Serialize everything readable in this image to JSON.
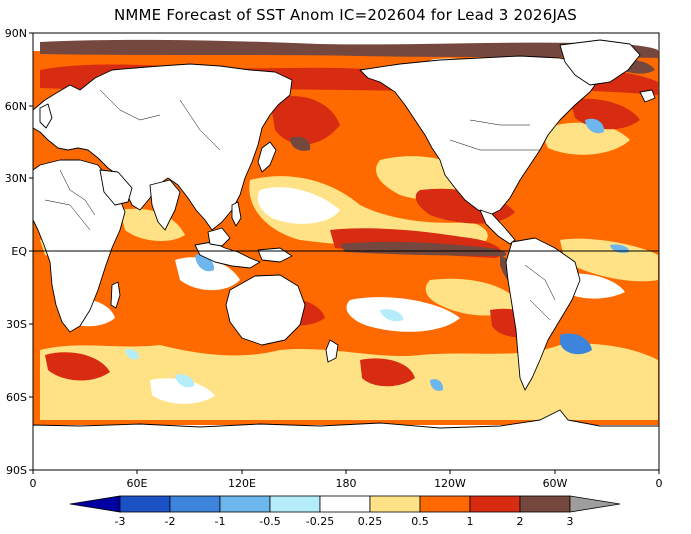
{
  "title": "NMME Forecast of SST Anom IC=202604 for Lead 3 2026JAS",
  "map": {
    "lat_labels": [
      "90N",
      "60N",
      "30N",
      "EQ",
      "30S",
      "60S",
      "90S"
    ],
    "lon_labels": [
      "0",
      "60E",
      "120E",
      "180",
      "120W",
      "60W",
      "0"
    ],
    "ocean_base_color": "#ff6a00",
    "land_color": "#ffffff",
    "coastline_color": "#000000"
  },
  "colorbar": {
    "levels": [
      "-3",
      "-2",
      "-1",
      "-0.5",
      "-0.25",
      "0.25",
      "0.5",
      "1",
      "2",
      "3"
    ],
    "colors": {
      "lt_neg3": "#0000a0",
      "neg3_neg2": "#1a52c6",
      "neg2_neg1": "#3c84dc",
      "neg1_neg05": "#6db6ee",
      "neg05_neg025": "#b4ecfa",
      "neg025_025": "#ffffff",
      "p025_p05": "#ffe285",
      "p05_p1": "#ff6a00",
      "p1_p2": "#d72b12",
      "p2_p3": "#74473f",
      "gt_p3": "#9e9e9e"
    }
  }
}
